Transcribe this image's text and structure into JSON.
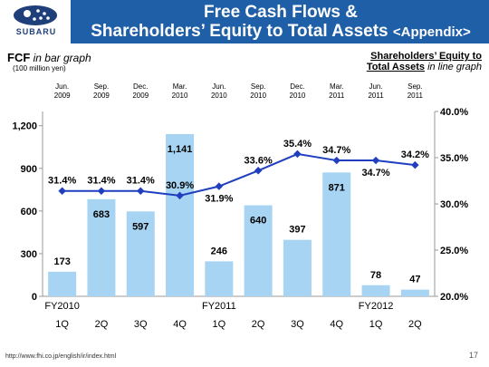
{
  "header": {
    "logo_text": "SUBARU",
    "title_line1": "Free Cash Flows &",
    "title_line2": "Shareholders’ Equity to Total Assets",
    "title_tag": "<Appendix>",
    "bg_color": "#1f5fa8"
  },
  "labels": {
    "fcf": "FCF",
    "fcf_suffix": "in bar graph",
    "unit": "(100 million yen)",
    "she_line1": "Shareholders’ Equity to",
    "she_line2": "Total Assets",
    "she_suffix": "in line graph"
  },
  "footer": {
    "url": "http://www.fhi.co.jp/english/ir/index.html",
    "page": "17"
  },
  "chart_data": {
    "type": "bar",
    "period_labels": [
      [
        "Jun.",
        "2009"
      ],
      [
        "Sep.",
        "2009"
      ],
      [
        "Dec.",
        "2009"
      ],
      [
        "Mar.",
        "2010"
      ],
      [
        "Jun.",
        "2010"
      ],
      [
        "Sep.",
        "2010"
      ],
      [
        "Dec.",
        "2010"
      ],
      [
        "Mar.",
        "2011"
      ],
      [
        "Jun.",
        "2011"
      ],
      [
        "Sep.",
        "2011"
      ]
    ],
    "categories": [
      "1Q",
      "2Q",
      "3Q",
      "4Q",
      "1Q",
      "2Q",
      "3Q",
      "4Q",
      "1Q",
      "2Q"
    ],
    "fiscal_years": [
      {
        "label": "FY2010",
        "start": 0
      },
      {
        "label": "FY2011",
        "start": 4
      },
      {
        "label": "FY2012",
        "start": 8
      }
    ],
    "bars": {
      "values": [
        173,
        683,
        597,
        1141,
        246,
        640,
        397,
        871,
        78,
        47
      ],
      "labels": [
        "173",
        "683",
        "597",
        "1,141",
        "246",
        "640",
        "397",
        "871",
        "78",
        "47"
      ],
      "color": "#a6d4f2"
    },
    "line": {
      "values": [
        31.4,
        31.4,
        31.4,
        30.9,
        31.9,
        33.6,
        35.4,
        34.7,
        34.7,
        34.2
      ],
      "labels": [
        "31.4%",
        "31.4%",
        "31.4%",
        "30.9%",
        "31.9%",
        "33.6%",
        "35.4%",
        "34.7%",
        "34.7%",
        "34.2%"
      ],
      "color": "#1f3fbf"
    },
    "left_axis": {
      "min": 0,
      "max": 1300,
      "ticks": [
        0,
        300,
        600,
        900,
        1200
      ],
      "tick_labels": [
        "0",
        "300",
        "600",
        "900",
        "1,200"
      ]
    },
    "right_axis": {
      "min": 20,
      "max": 40,
      "ticks": [
        20,
        25,
        30,
        35,
        40
      ],
      "tick_labels": [
        "20.0%",
        "25.0%",
        "30.0%",
        "35.0%",
        "40.0%"
      ]
    }
  }
}
